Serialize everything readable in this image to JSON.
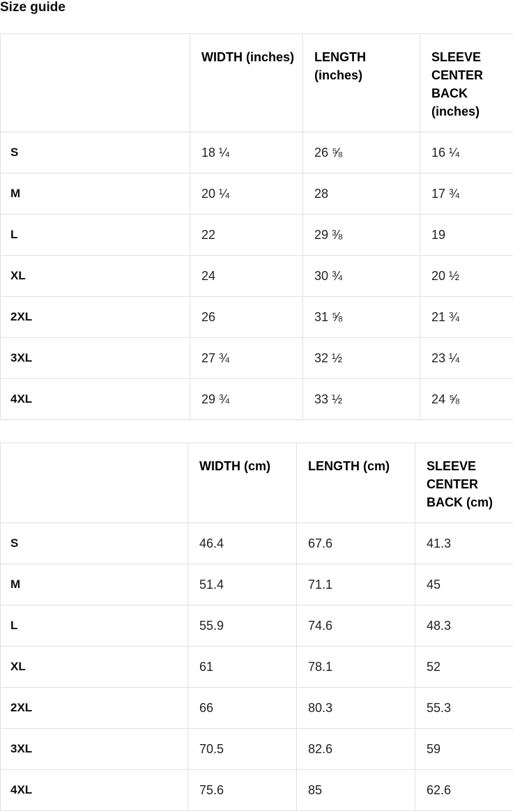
{
  "page": {
    "title": "Size guide"
  },
  "colors": {
    "border": "#e1e1e1",
    "text": "#1a1a1a",
    "background": "#ffffff"
  },
  "tables": [
    {
      "name": "size-guide-inches",
      "unit": "inches",
      "columns": [
        "",
        "WIDTH (inches)",
        "LENGTH (inches)",
        "SLEEVE CENTER BACK (inches)"
      ],
      "rows": [
        {
          "size": "S",
          "values": [
            "18 ¼",
            "26 ⅝",
            "16 ¼"
          ]
        },
        {
          "size": "M",
          "values": [
            "20 ¼",
            "28",
            "17 ¾"
          ]
        },
        {
          "size": "L",
          "values": [
            "22",
            "29 ⅜",
            "19"
          ]
        },
        {
          "size": "XL",
          "values": [
            "24",
            "30 ¾",
            "20 ½"
          ]
        },
        {
          "size": "2XL",
          "values": [
            "26",
            "31 ⅝",
            "21 ¾"
          ]
        },
        {
          "size": "3XL",
          "values": [
            "27 ¾",
            "32 ½",
            "23 ¼"
          ]
        },
        {
          "size": "4XL",
          "values": [
            "29 ¾",
            "33 ½",
            "24 ⅝"
          ]
        }
      ]
    },
    {
      "name": "size-guide-cm",
      "unit": "cm",
      "columns": [
        "",
        "WIDTH (cm)",
        "LENGTH (cm)",
        "SLEEVE CENTER BACK (cm)"
      ],
      "rows": [
        {
          "size": "S",
          "values": [
            "46.4",
            "67.6",
            "41.3"
          ]
        },
        {
          "size": "M",
          "values": [
            "51.4",
            "71.1",
            "45"
          ]
        },
        {
          "size": "L",
          "values": [
            "55.9",
            "74.6",
            "48.3"
          ]
        },
        {
          "size": "XL",
          "values": [
            "61",
            "78.1",
            "52"
          ]
        },
        {
          "size": "2XL",
          "values": [
            "66",
            "80.3",
            "55.3"
          ]
        },
        {
          "size": "3XL",
          "values": [
            "70.5",
            "82.6",
            "59"
          ]
        },
        {
          "size": "4XL",
          "values": [
            "75.6",
            "85",
            "62.6"
          ]
        }
      ]
    }
  ]
}
